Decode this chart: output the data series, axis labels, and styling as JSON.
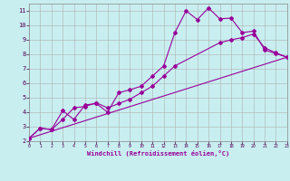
{
  "xlabel": "Windchill (Refroidissement éolien,°C)",
  "bg_color": "#c8eef0",
  "line_color": "#990099",
  "grid_color": "#b0b0b0",
  "xlim": [
    0,
    23
  ],
  "ylim": [
    2,
    11.5
  ],
  "xticks": [
    0,
    1,
    2,
    3,
    4,
    5,
    6,
    7,
    8,
    9,
    10,
    11,
    12,
    13,
    14,
    15,
    16,
    17,
    18,
    19,
    20,
    21,
    22,
    23
  ],
  "yticks": [
    2,
    3,
    4,
    5,
    6,
    7,
    8,
    9,
    10,
    11
  ],
  "line1_x": [
    0,
    1,
    2,
    3,
    4,
    5,
    6,
    7,
    8,
    9,
    10,
    11,
    12,
    13,
    14,
    15,
    16,
    17,
    18,
    19,
    20,
    21,
    22,
    23
  ],
  "line1_y": [
    2.2,
    2.9,
    2.8,
    4.1,
    3.5,
    4.5,
    4.6,
    4.0,
    5.35,
    5.55,
    5.8,
    6.5,
    7.2,
    9.5,
    11.0,
    10.4,
    11.2,
    10.45,
    10.5,
    9.5,
    9.6,
    8.3,
    8.05,
    7.8
  ],
  "line2_x": [
    0,
    1,
    2,
    3,
    4,
    5,
    6,
    7,
    8,
    9,
    10,
    11,
    12,
    13,
    17,
    18,
    19,
    20,
    21,
    22,
    23
  ],
  "line2_y": [
    2.2,
    2.9,
    2.8,
    3.5,
    4.3,
    4.4,
    4.65,
    4.3,
    4.6,
    4.9,
    5.35,
    5.8,
    6.5,
    7.2,
    8.8,
    9.0,
    9.15,
    9.4,
    8.45,
    8.1,
    7.8
  ],
  "line3_x": [
    0,
    23
  ],
  "line3_y": [
    2.2,
    7.8
  ]
}
